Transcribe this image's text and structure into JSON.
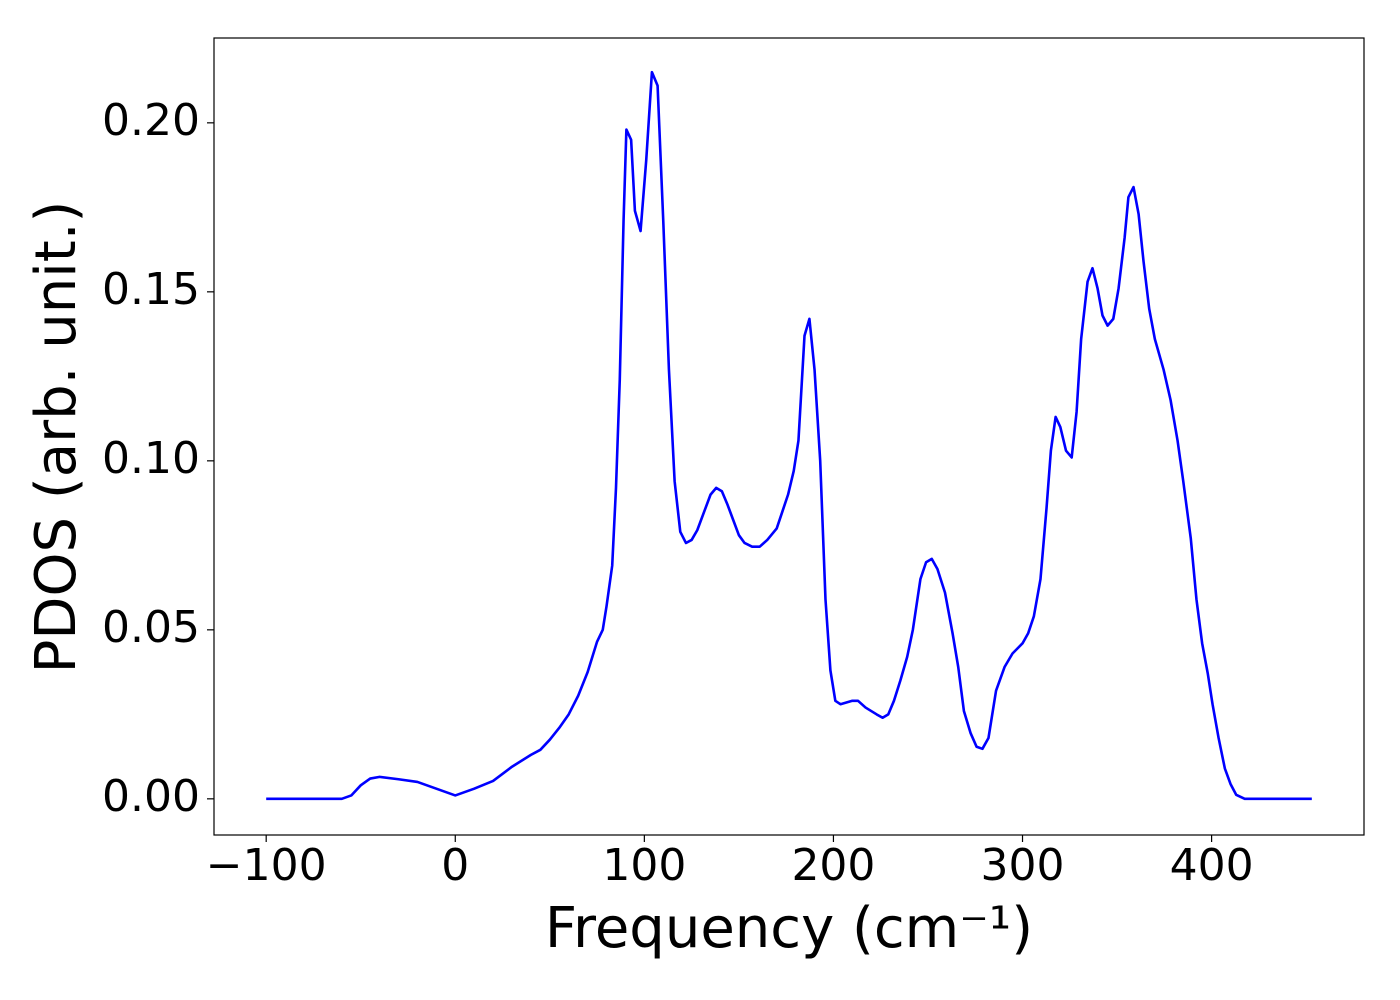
{
  "chart_data": {
    "type": "line",
    "x_label": "Frequency (cm⁻¹)",
    "y_label": "PDOS (arb. unit.)",
    "color": "#0000ff",
    "xlim": [
      -127.6,
      480.6
    ],
    "ylim": [
      -0.0107,
      0.2251
    ],
    "xticks": [
      {
        "value": -100,
        "label": "−100"
      },
      0,
      100,
      200,
      300,
      400
    ],
    "yticks": [
      {
        "value": 0,
        "label": "0.00"
      },
      {
        "value": 0.05,
        "label": "0.05"
      },
      {
        "value": 0.1,
        "label": "0.10"
      },
      {
        "value": 0.15,
        "label": "0.15"
      },
      {
        "value": 0.2,
        "label": "0.20"
      }
    ],
    "x": [
      -100,
      -80,
      -60,
      -55,
      -50,
      -45,
      -40,
      -30,
      -20,
      -10,
      0,
      10,
      20,
      30,
      40,
      45,
      50,
      55,
      60,
      65,
      70,
      75,
      78,
      80,
      83,
      85,
      87,
      89,
      90.5,
      93,
      95,
      98,
      101,
      104,
      107,
      110,
      113,
      116,
      119,
      122,
      125,
      128,
      132,
      135,
      138,
      141,
      144,
      147,
      150,
      153,
      157,
      161,
      165,
      170,
      173,
      176,
      179,
      181.5,
      184.7,
      187.3,
      190,
      193,
      195.8,
      198.4,
      201,
      203.7,
      210,
      213,
      217,
      222.8,
      226,
      229,
      232,
      235.4,
      239,
      242,
      246,
      249,
      252,
      255,
      259,
      263,
      266,
      269,
      272.5,
      275.7,
      278.8,
      282,
      286,
      290.5,
      294.7,
      300,
      303,
      306,
      309.5,
      312.7,
      315,
      317.5,
      320,
      323,
      326,
      328.6,
      331,
      334.4,
      337,
      339.7,
      342.3,
      345,
      348,
      350.8,
      354,
      356,
      358.7,
      361.4,
      364,
      367,
      370,
      374.6,
      378.3,
      382,
      385,
      389,
      392,
      395,
      398,
      400.5,
      403.7,
      407,
      410,
      413,
      417.5,
      430,
      453
    ],
    "values": [
      0,
      0,
      0,
      0.001,
      0.004,
      0.006,
      0.0065,
      0.0058,
      0.005,
      0.003,
      0.001,
      0.003,
      0.0053,
      0.0095,
      0.013,
      0.0145,
      0.0175,
      0.021,
      0.025,
      0.0305,
      0.0375,
      0.0465,
      0.05,
      0.057,
      0.069,
      0.092,
      0.124,
      0.171,
      0.198,
      0.195,
      0.174,
      0.168,
      0.189,
      0.215,
      0.211,
      0.171,
      0.127,
      0.094,
      0.079,
      0.0757,
      0.0766,
      0.0795,
      0.0855,
      0.09,
      0.092,
      0.091,
      0.087,
      0.0825,
      0.078,
      0.0757,
      0.0746,
      0.0746,
      0.0766,
      0.08,
      0.085,
      0.09,
      0.097,
      0.106,
      0.137,
      0.142,
      0.127,
      0.1,
      0.059,
      0.038,
      0.029,
      0.028,
      0.029,
      0.029,
      0.027,
      0.025,
      0.024,
      0.025,
      0.029,
      0.035,
      0.042,
      0.05,
      0.065,
      0.07,
      0.071,
      0.068,
      0.061,
      0.049,
      0.039,
      0.026,
      0.0195,
      0.0154,
      0.0148,
      0.018,
      0.032,
      0.039,
      0.043,
      0.046,
      0.049,
      0.054,
      0.065,
      0.086,
      0.103,
      0.113,
      0.11,
      0.103,
      0.101,
      0.1145,
      0.136,
      0.153,
      0.157,
      0.151,
      0.143,
      0.14,
      0.142,
      0.151,
      0.166,
      0.178,
      0.181,
      0.173,
      0.159,
      0.145,
      0.136,
      0.127,
      0.118,
      0.106,
      0.094,
      0.077,
      0.059,
      0.046,
      0.037,
      0.028,
      0.018,
      0.009,
      0.0044,
      0.0012,
      0,
      0,
      0
    ]
  }
}
